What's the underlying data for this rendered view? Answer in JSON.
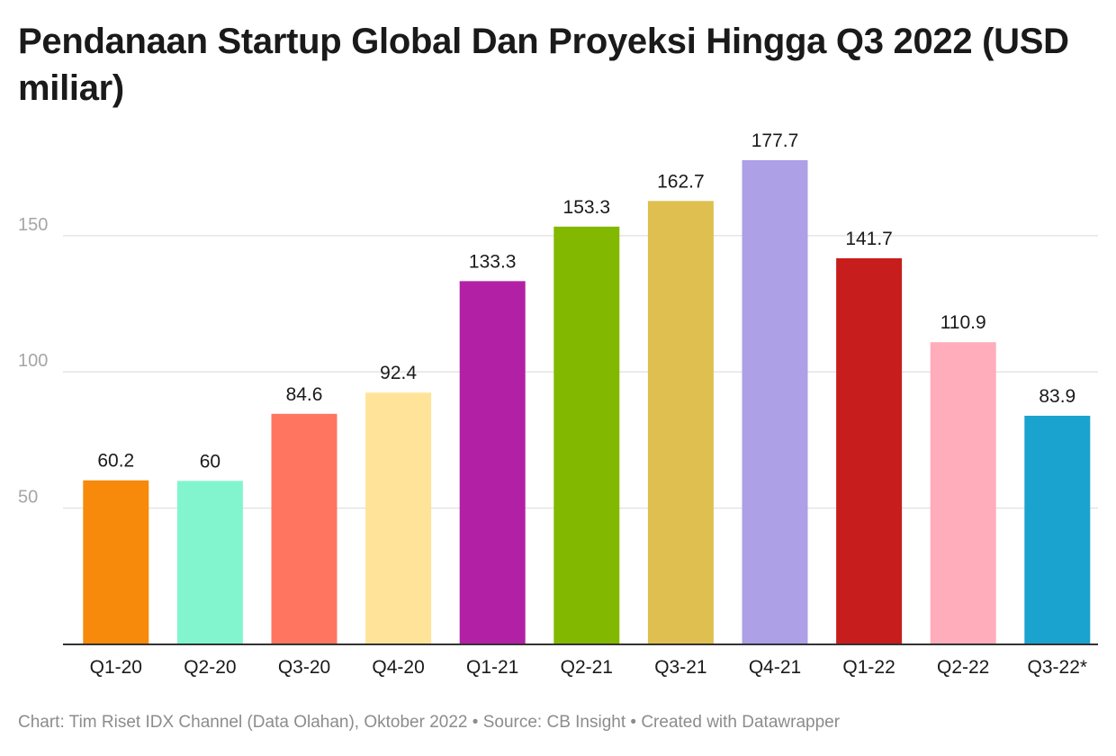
{
  "chart_data": {
    "type": "bar",
    "title": "Pendanaan Startup Global Dan Proyeksi Hingga Q3 2022 (USD miliar)",
    "categories": [
      "Q1-20",
      "Q2-20",
      "Q3-20",
      "Q4-20",
      "Q1-21",
      "Q2-21",
      "Q3-21",
      "Q4-21",
      "Q1-22",
      "Q2-22",
      "Q3-22*"
    ],
    "values": [
      60.2,
      60,
      84.6,
      92.4,
      133.3,
      153.3,
      162.7,
      177.7,
      141.7,
      110.9,
      83.9
    ],
    "value_labels": [
      "60.2",
      "60",
      "84.6",
      "92.4",
      "133.3",
      "153.3",
      "162.7",
      "177.7",
      "141.7",
      "110.9",
      "83.9"
    ],
    "colors": [
      "#f78a0a",
      "#82f5cf",
      "#ff7560",
      "#ffe399",
      "#b221a5",
      "#82b800",
      "#dfbf50",
      "#ada0e6",
      "#c71e1d",
      "#ffadbb",
      "#1ba3cf"
    ],
    "y_ticks": [
      50,
      100,
      150
    ],
    "y_tick_labels": [
      "50",
      "100",
      "150"
    ],
    "ylim": [
      0,
      180
    ],
    "xlabel": "",
    "ylabel": "",
    "grid": true,
    "legend": "none"
  },
  "footer": "Chart: Tim Riset IDX Channel (Data Olahan), Oktober 2022 • Source: CB Insight • Created with Datawrapper"
}
